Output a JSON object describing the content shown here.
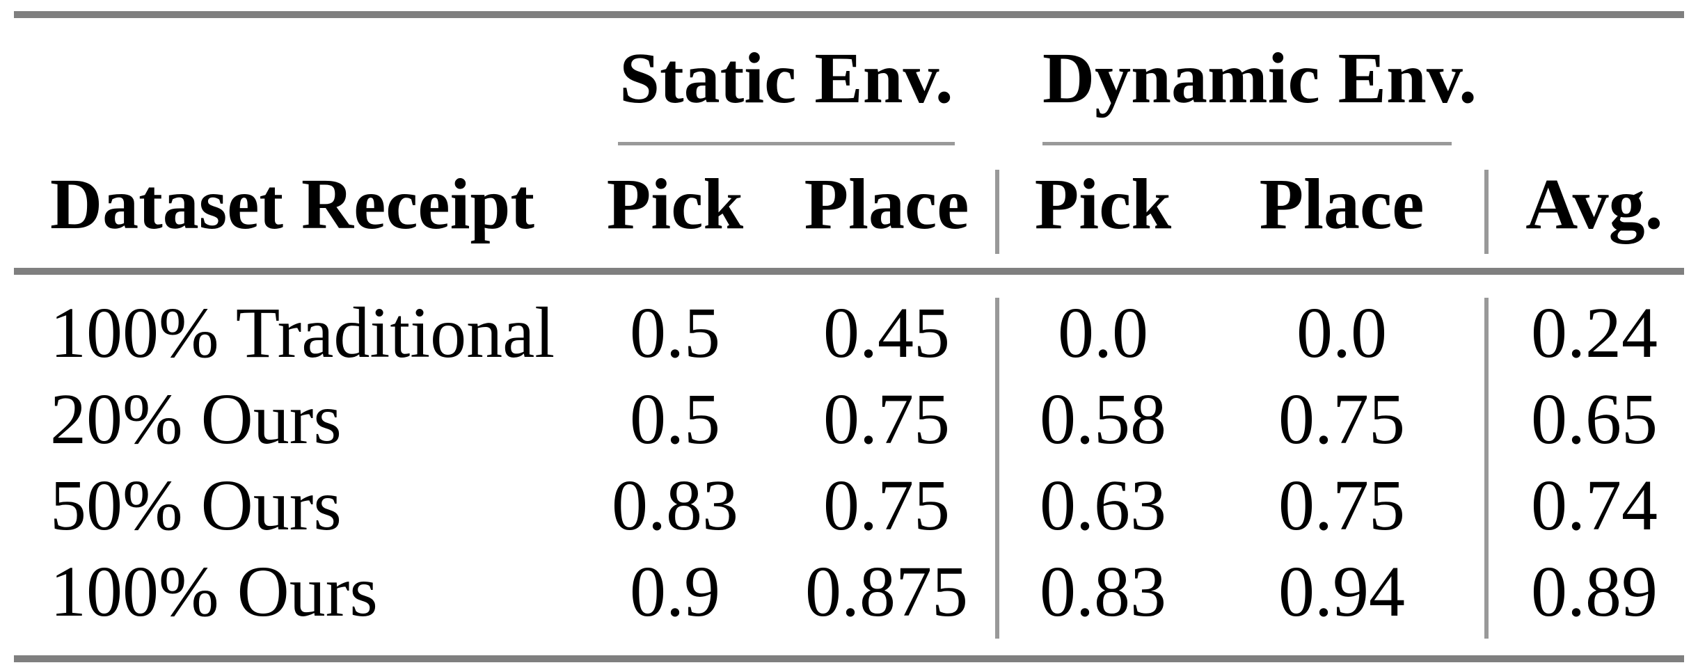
{
  "page": {
    "background": "#ffffff"
  },
  "styles": {
    "heavy_rule_color": "#7f7f7f",
    "light_rule_color": "#999999",
    "text_color": "#000000"
  },
  "table": {
    "groups": [
      {
        "label": "Static Env."
      },
      {
        "label": "Dynamic Env."
      }
    ],
    "columns": [
      "Dataset Receipt",
      "Pick",
      "Place",
      "Pick",
      "Place",
      "Avg."
    ],
    "rows": [
      [
        "100% Traditional",
        "0.5",
        "0.45",
        "0.0",
        "0.0",
        "0.24"
      ],
      [
        "20% Ours",
        "0.5",
        "0.75",
        "0.58",
        "0.75",
        "0.65"
      ],
      [
        "50% Ours",
        "0.83",
        "0.75",
        "0.63",
        "0.75",
        "0.74"
      ],
      [
        "100% Ours",
        "0.9",
        "0.875",
        "0.83",
        "0.94",
        "0.89"
      ]
    ]
  },
  "chart_data": {
    "type": "table",
    "title": "",
    "column_groups": [
      {
        "label": "Static Env.",
        "columns": [
          "Pick",
          "Place"
        ]
      },
      {
        "label": "Dynamic Env.",
        "columns": [
          "Pick",
          "Place"
        ]
      }
    ],
    "row_header": "Dataset Receipt",
    "categories": [
      "100% Traditional",
      "20% Ours",
      "50% Ours",
      "100% Ours"
    ],
    "series": [
      {
        "name": "Static Env. Pick",
        "values": [
          0.5,
          0.5,
          0.83,
          0.9
        ]
      },
      {
        "name": "Static Env. Place",
        "values": [
          0.45,
          0.75,
          0.75,
          0.875
        ]
      },
      {
        "name": "Dynamic Env. Pick",
        "values": [
          0.0,
          0.58,
          0.63,
          0.83
        ]
      },
      {
        "name": "Dynamic Env. Place",
        "values": [
          0.0,
          0.75,
          0.75,
          0.94
        ]
      },
      {
        "name": "Avg.",
        "values": [
          0.24,
          0.65,
          0.74,
          0.89
        ]
      }
    ]
  }
}
